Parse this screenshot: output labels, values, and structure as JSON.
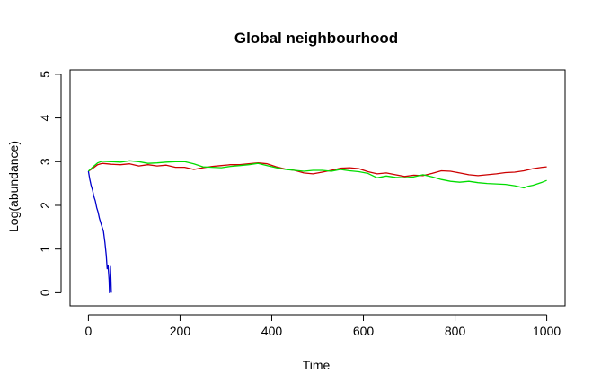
{
  "chart_data": {
    "type": "line",
    "title": "Global neighbourhood",
    "xlabel": "Time",
    "ylabel": "Log(abundance)",
    "xlim": [
      -40,
      1040
    ],
    "ylim": [
      -0.3,
      5.1
    ],
    "xticks": [
      0,
      200,
      400,
      600,
      800,
      1000
    ],
    "yticks": [
      0,
      1,
      2,
      3,
      4,
      5
    ],
    "xtick_labels": [
      "0",
      "200",
      "400",
      "600",
      "800",
      "1000"
    ],
    "ytick_labels": [
      "0",
      "1",
      "2",
      "3",
      "4",
      "5"
    ],
    "grid": false,
    "series": [
      {
        "color": "#cc0000",
        "x": [
          0,
          10,
          20,
          30,
          50,
          70,
          90,
          110,
          130,
          150,
          170,
          190,
          210,
          230,
          250,
          270,
          290,
          310,
          330,
          350,
          370,
          390,
          410,
          430,
          450,
          470,
          490,
          510,
          530,
          550,
          570,
          590,
          610,
          630,
          650,
          670,
          690,
          710,
          730,
          750,
          770,
          790,
          810,
          830,
          850,
          870,
          890,
          910,
          930,
          950,
          970,
          990,
          1000
        ],
        "y": [
          2.78,
          2.85,
          2.93,
          2.96,
          2.94,
          2.93,
          2.95,
          2.9,
          2.93,
          2.9,
          2.92,
          2.87,
          2.87,
          2.82,
          2.86,
          2.89,
          2.91,
          2.93,
          2.93,
          2.95,
          2.97,
          2.95,
          2.88,
          2.83,
          2.8,
          2.74,
          2.72,
          2.76,
          2.8,
          2.85,
          2.86,
          2.84,
          2.77,
          2.72,
          2.74,
          2.7,
          2.66,
          2.69,
          2.68,
          2.73,
          2.79,
          2.78,
          2.74,
          2.7,
          2.68,
          2.7,
          2.72,
          2.75,
          2.76,
          2.79,
          2.84,
          2.87,
          2.88
        ]
      },
      {
        "color": "#00dd00",
        "x": [
          0,
          10,
          20,
          30,
          50,
          70,
          90,
          110,
          130,
          150,
          170,
          190,
          210,
          230,
          250,
          270,
          290,
          310,
          330,
          350,
          370,
          390,
          410,
          430,
          450,
          470,
          490,
          510,
          530,
          550,
          570,
          590,
          610,
          630,
          650,
          670,
          690,
          710,
          730,
          750,
          770,
          790,
          810,
          830,
          850,
          870,
          890,
          910,
          930,
          950,
          960,
          970,
          990,
          1000
        ],
        "y": [
          2.78,
          2.88,
          2.97,
          3.01,
          3.0,
          2.99,
          3.02,
          3.0,
          2.96,
          2.97,
          2.99,
          3.0,
          3.0,
          2.95,
          2.88,
          2.87,
          2.86,
          2.89,
          2.91,
          2.93,
          2.96,
          2.91,
          2.86,
          2.82,
          2.8,
          2.78,
          2.8,
          2.8,
          2.78,
          2.82,
          2.79,
          2.77,
          2.73,
          2.63,
          2.67,
          2.64,
          2.63,
          2.65,
          2.7,
          2.65,
          2.59,
          2.55,
          2.53,
          2.55,
          2.52,
          2.5,
          2.49,
          2.48,
          2.45,
          2.4,
          2.44,
          2.46,
          2.53,
          2.57
        ]
      },
      {
        "color": "#0000cc",
        "x": [
          0,
          3,
          6,
          9,
          12,
          15,
          18,
          21,
          24,
          27,
          30,
          33,
          36,
          39,
          41,
          43,
          45,
          46,
          47,
          48,
          49,
          50
        ],
        "y": [
          2.78,
          2.6,
          2.45,
          2.35,
          2.2,
          2.1,
          1.95,
          1.85,
          1.7,
          1.6,
          1.5,
          1.4,
          1.15,
          0.85,
          0.55,
          0.62,
          0.3,
          0.0,
          0.2,
          0.6,
          0.35,
          0.0
        ]
      }
    ]
  }
}
